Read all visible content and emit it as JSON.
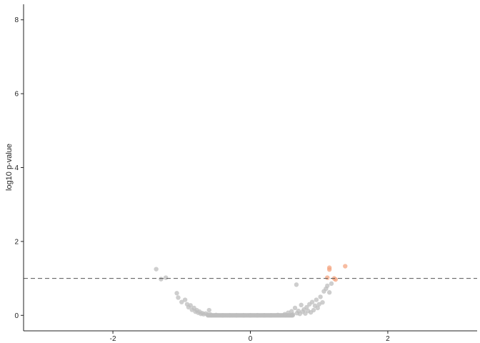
{
  "chart_data": {
    "type": "scatter",
    "title": "",
    "xlabel": "",
    "ylabel": "log10 p-value",
    "xlim": [
      -3.3,
      3.3
    ],
    "ylim": [
      -0.42,
      8.42
    ],
    "x_ticks": [
      -2,
      0,
      2
    ],
    "y_ticks": [
      0,
      2,
      4,
      6,
      8
    ],
    "x_tick_labels": [
      "-2",
      "0",
      "2"
    ],
    "y_tick_labels": [
      "0",
      "2",
      "4",
      "6",
      "8"
    ],
    "grid": false,
    "legend": "none",
    "threshold_y": 1.0,
    "colors": {
      "not_significant": "#bebebe",
      "significant": "#f4a582",
      "threshold_line": "#555555",
      "axis": "#222222"
    },
    "series": [
      {
        "color": "#bebebe",
        "points": [
          [
            -1.37,
            1.25
          ],
          [
            -1.23,
            1.02
          ],
          [
            -1.3,
            0.98
          ],
          [
            -1.07,
            0.6
          ],
          [
            -1.05,
            0.48
          ],
          [
            -1.0,
            0.36
          ],
          [
            -0.95,
            0.42
          ],
          [
            -0.92,
            0.3
          ],
          [
            -0.9,
            0.22
          ],
          [
            -0.87,
            0.27
          ],
          [
            -0.85,
            0.15
          ],
          [
            -0.82,
            0.2
          ],
          [
            -0.8,
            0.1
          ],
          [
            -0.78,
            0.14
          ],
          [
            -0.76,
            0.07
          ],
          [
            -0.74,
            0.1
          ],
          [
            -0.72,
            0.04
          ],
          [
            -0.7,
            0.06
          ],
          [
            -0.68,
            0.03
          ],
          [
            -0.65,
            0.05
          ],
          [
            -0.62,
            0.02
          ],
          [
            -0.6,
            0.14
          ],
          [
            -0.58,
            0.02
          ],
          [
            -0.5,
            0.01
          ],
          [
            -0.4,
            0.0
          ],
          [
            -0.3,
            0.0
          ],
          [
            -0.2,
            0.0
          ],
          [
            -0.1,
            0.0
          ],
          [
            0.0,
            0.0
          ],
          [
            0.1,
            0.0
          ],
          [
            0.2,
            0.0
          ],
          [
            0.3,
            0.0
          ],
          [
            0.4,
            0.01
          ],
          [
            0.5,
            0.03
          ],
          [
            0.55,
            0.07
          ],
          [
            0.6,
            0.11
          ],
          [
            0.62,
            0.02
          ],
          [
            0.65,
            0.2
          ],
          [
            0.68,
            0.06
          ],
          [
            0.7,
            0.12
          ],
          [
            0.72,
            0.04
          ],
          [
            0.74,
            0.28
          ],
          [
            0.76,
            0.1
          ],
          [
            0.78,
            0.16
          ],
          [
            0.8,
            0.05
          ],
          [
            0.82,
            0.22
          ],
          [
            0.84,
            0.12
          ],
          [
            0.86,
            0.3
          ],
          [
            0.88,
            0.08
          ],
          [
            0.9,
            0.36
          ],
          [
            0.92,
            0.14
          ],
          [
            0.94,
            0.26
          ],
          [
            0.96,
            0.42
          ],
          [
            0.98,
            0.2
          ],
          [
            1.0,
            0.3
          ],
          [
            1.02,
            0.5
          ],
          [
            1.05,
            0.35
          ],
          [
            1.07,
            0.65
          ],
          [
            1.1,
            0.72
          ],
          [
            1.12,
            0.8
          ],
          [
            0.67,
            0.83
          ],
          [
            1.15,
            0.62
          ],
          [
            1.18,
            0.86
          ]
        ]
      },
      {
        "color": "#f4a582",
        "points": [
          [
            1.38,
            1.33
          ],
          [
            1.15,
            1.29
          ],
          [
            1.15,
            1.24
          ],
          [
            1.12,
            1.02
          ],
          [
            1.22,
            1.0
          ],
          [
            1.24,
            0.97
          ]
        ]
      }
    ]
  }
}
